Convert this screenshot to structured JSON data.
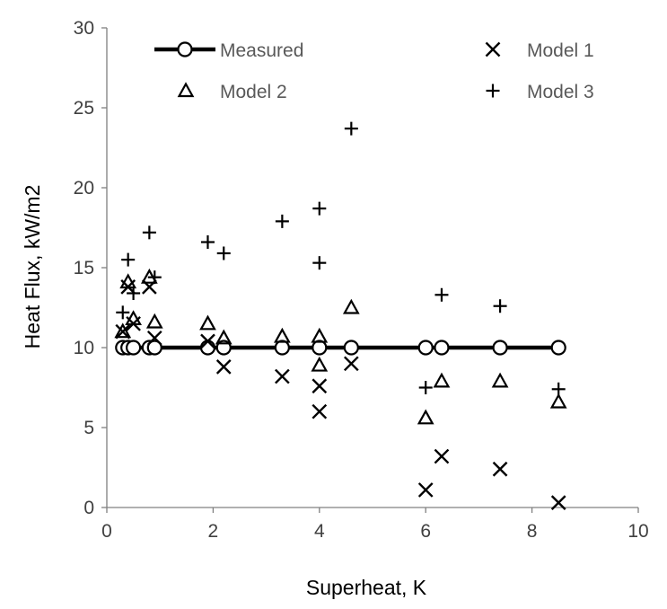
{
  "chart_data": {
    "type": "scatter",
    "xlabel": "Superheat, K",
    "ylabel": "Heat Flux, kW/m2",
    "xlim": [
      0,
      10
    ],
    "ylim": [
      0,
      30
    ],
    "xticks": [
      "0",
      "2",
      "4",
      "6",
      "8",
      "10"
    ],
    "yticks": [
      "0",
      "5",
      "10",
      "15",
      "20",
      "25",
      "30"
    ],
    "grid": false,
    "legend_position": "top",
    "series": [
      {
        "name": "Measured",
        "marker": "circle-line",
        "color": "#000000",
        "x": [
          0.3,
          0.4,
          0.5,
          0.8,
          0.9,
          1.9,
          2.2,
          3.3,
          4.0,
          4.6,
          6.0,
          6.3,
          7.4,
          8.5
        ],
        "y": [
          10,
          10,
          10,
          10,
          10,
          10,
          10,
          10,
          10,
          10,
          10,
          10,
          10,
          10
        ]
      },
      {
        "name": "Model 1",
        "marker": "x",
        "color": "#000000",
        "x": [
          0.3,
          0.4,
          0.5,
          0.8,
          0.9,
          1.9,
          2.2,
          3.3,
          4.0,
          4.0,
          4.6,
          6.0,
          6.3,
          7.4,
          8.5
        ],
        "y": [
          11.0,
          13.8,
          11.5,
          13.8,
          10.6,
          10.4,
          8.8,
          8.2,
          7.6,
          6.0,
          9.0,
          1.1,
          3.2,
          2.4,
          0.3
        ]
      },
      {
        "name": "Model 2",
        "marker": "triangle",
        "color": "#000000",
        "x": [
          0.3,
          0.4,
          0.5,
          0.8,
          0.9,
          1.9,
          2.2,
          3.3,
          4.0,
          4.0,
          4.6,
          6.0,
          6.3,
          7.4,
          8.5
        ],
        "y": [
          11.0,
          14.1,
          11.8,
          14.4,
          11.6,
          11.5,
          10.6,
          10.7,
          10.7,
          8.9,
          12.5,
          5.6,
          7.9,
          7.9,
          6.6
        ]
      },
      {
        "name": "Model 3",
        "marker": "plus",
        "color": "#000000",
        "x": [
          0.3,
          0.4,
          0.5,
          0.8,
          0.9,
          1.9,
          2.2,
          3.3,
          4.0,
          4.0,
          4.6,
          6.0,
          6.3,
          7.4,
          8.5
        ],
        "y": [
          12.2,
          15.5,
          13.4,
          17.2,
          14.4,
          16.6,
          15.9,
          17.9,
          18.7,
          15.3,
          23.7,
          7.5,
          13.3,
          12.6,
          7.4
        ]
      }
    ]
  }
}
